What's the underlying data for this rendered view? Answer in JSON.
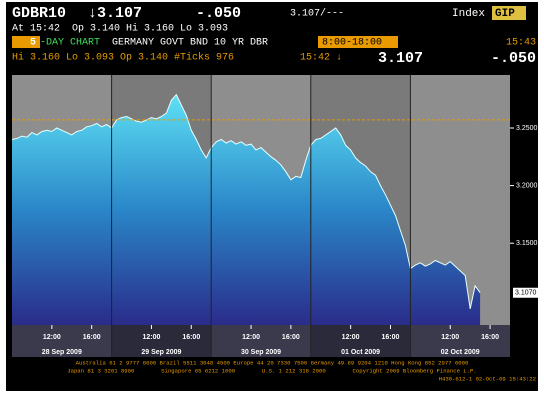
{
  "header": {
    "symbol": "GDBR10",
    "last": "↓3.107",
    "change": "-.050",
    "bidask": "3.107/---",
    "index_label": "Index",
    "index_code": "GIP",
    "line2": "At 15:42  Op 3.140 Hi 3.160 Lo 3.093",
    "tab": "5",
    "title_a": "-DAY CHART",
    "title_b": "GERMANY GOVT BND 10 YR DBR",
    "time_range": "8:00-18:00",
    "clock": "15:43",
    "stats": "Hi 3.160 Lo 3.093 Op 3.140 #Ticks 976",
    "last_time": "15:42 ↓",
    "last_price": "3.107",
    "last_change": "-.050"
  },
  "chart_data": {
    "type": "area",
    "x": [
      0,
      0.5,
      1,
      1.5,
      2,
      2.5,
      3,
      3.5,
      4,
      4.5,
      5,
      5.5,
      6,
      6.5,
      7,
      7.5,
      8,
      8.5,
      9,
      9.5,
      10,
      10.5,
      11,
      11.5,
      12,
      12.5,
      13,
      13.5,
      14,
      14.5,
      15,
      15.5,
      16,
      16.5,
      17,
      17.5,
      18,
      18.5,
      19,
      19.5,
      20,
      20.5,
      21,
      21.5,
      22,
      22.5,
      23,
      23.5,
      24,
      24.5,
      25,
      25.5,
      26,
      26.5,
      27,
      27.5,
      28,
      28.5,
      29,
      29.5,
      30,
      30.5,
      31,
      31.5,
      32,
      32.5,
      33,
      33.5,
      34,
      34.5,
      35,
      35.5,
      36,
      36.5,
      37,
      37.5,
      38,
      38.5,
      39,
      39.5,
      40,
      40.5,
      41,
      41.5,
      42,
      42.5,
      43,
      43.5,
      44,
      44.5,
      45,
      45.5,
      46,
      46.5,
      47
    ],
    "series": [
      {
        "name": "GDBR10",
        "color": "#e8ffff",
        "values": [
          3.24,
          3.241,
          3.243,
          3.242,
          3.246,
          3.244,
          3.247,
          3.248,
          3.247,
          3.25,
          3.248,
          3.246,
          3.244,
          3.247,
          3.248,
          3.251,
          3.252,
          3.254,
          3.251,
          3.253,
          3.25,
          3.257,
          3.259,
          3.26,
          3.258,
          3.256,
          3.255,
          3.257,
          3.259,
          3.258,
          3.26,
          3.263,
          3.274,
          3.279,
          3.27,
          3.261,
          3.248,
          3.24,
          3.231,
          3.224,
          3.233,
          3.238,
          3.24,
          3.237,
          3.239,
          3.236,
          3.238,
          3.235,
          3.236,
          3.231,
          3.233,
          3.229,
          3.225,
          3.222,
          3.218,
          3.212,
          3.205,
          3.208,
          3.207,
          3.222,
          3.235,
          3.24,
          3.241,
          3.244,
          3.247,
          3.25,
          3.244,
          3.235,
          3.231,
          3.224,
          3.22,
          3.217,
          3.212,
          3.209,
          3.2,
          3.192,
          3.183,
          3.174,
          3.161,
          3.148,
          3.128,
          3.131,
          3.133,
          3.13,
          3.132,
          3.135,
          3.133,
          3.131,
          3.134,
          3.13,
          3.126,
          3.122,
          3.093,
          3.113,
          3.107
        ]
      }
    ],
    "xlim": [
      0,
      50
    ],
    "ylim": [
      3.079,
      3.296
    ],
    "xticks": [
      {
        "value": 4,
        "label": "12:00"
      },
      {
        "value": 8,
        "label": "16:00"
      },
      {
        "value": 14,
        "label": "12:00"
      },
      {
        "value": 18,
        "label": "16:00"
      },
      {
        "value": 24,
        "label": "12:00"
      },
      {
        "value": 28,
        "label": "16:00"
      },
      {
        "value": 34,
        "label": "12:00"
      },
      {
        "value": 38,
        "label": "16:00"
      },
      {
        "value": 44,
        "label": "12:00"
      },
      {
        "value": 48,
        "label": "16:00"
      }
    ],
    "yticks": [
      {
        "value": 3.25,
        "label": "3.2500"
      },
      {
        "value": 3.2,
        "label": "3.2000"
      },
      {
        "value": 3.15,
        "label": "3.1500"
      }
    ],
    "days": [
      "28 Sep 2009",
      "29 Sep 2009",
      "30 Sep 2009",
      "01 Oct 2009",
      "02 Oct 2009"
    ],
    "ref_line": 3.257,
    "last_marker": {
      "value": 3.107,
      "label": "3.1070"
    }
  },
  "footer": [
    "Australia 61 2 9777 8600 Brazil 5511 3048 4500 Europe 44 20 7330 7500 Germany 49 69 9204 1210 Hong Kong 852 2977 6000",
    "Japan 81 3 3201 8900        Singapore 65 6212 1000        U.S. 1 212 318 2000        Copyright 2009 Bloomberg Finance L.P.",
    "H430-612-1 02-Oct-09 15:43:22"
  ]
}
